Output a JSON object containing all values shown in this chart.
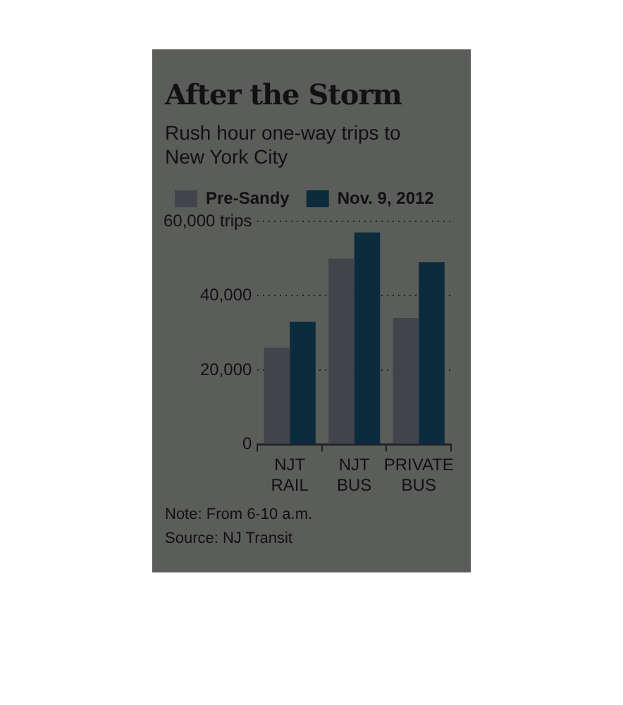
{
  "chart_data": {
    "type": "bar",
    "title": "After the Storm",
    "subtitle": "Rush hour one-way trips to New York City",
    "categories": [
      "NJT RAIL",
      "NJT BUS",
      "PRIVATE BUS"
    ],
    "series": [
      {
        "name": "Pre-Sandy",
        "color": "#41454b",
        "values": [
          26000,
          50000,
          34000
        ]
      },
      {
        "name": "Nov. 9, 2012",
        "color": "#0c2b3c",
        "values": [
          33000,
          57000,
          49000
        ]
      }
    ],
    "ylim": [
      0,
      60000
    ],
    "yticks": [
      0,
      {
        "value": 20000,
        "label": "20,000"
      },
      {
        "value": 40000,
        "label": "40,000"
      },
      {
        "value": 60000,
        "label": "60,000 trips"
      }
    ],
    "grid": "y",
    "legend": "top left",
    "annotations": [
      "Note: From 6-10 a.m.",
      "Source: NJ Transit"
    ]
  }
}
